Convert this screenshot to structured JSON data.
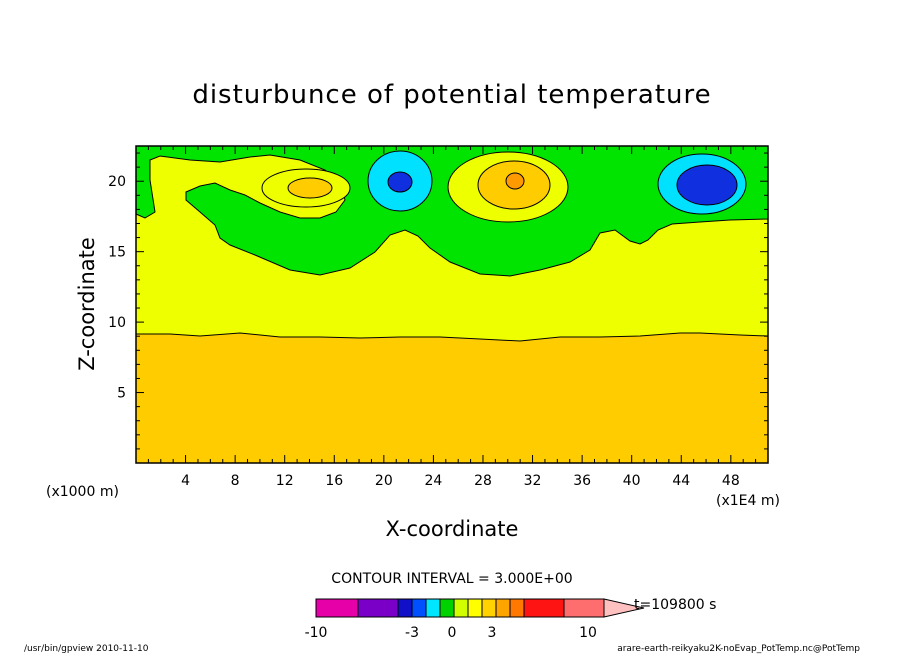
{
  "chart_data": {
    "type": "heatmap",
    "title": "disturbunce of potential temperature",
    "xlabel": "X-coordinate",
    "ylabel": "Z-coordinate",
    "x_unit": "(x1E4 m)",
    "y_unit": "(x1000 m)",
    "xlim": [
      0,
      51
    ],
    "ylim": [
      0,
      22.5
    ],
    "x_ticks": [
      4,
      8,
      12,
      16,
      20,
      24,
      28,
      32,
      36,
      40,
      44,
      48
    ],
    "y_ticks": [
      5,
      10,
      15,
      20
    ],
    "contour_interval": "CONTOUR INTERVAL = 3.000E+00",
    "time_label": "t=109800 s",
    "colorbar": {
      "tick_labels": [
        "-10",
        "-3",
        "0",
        "3",
        "10"
      ],
      "colors": [
        "#e600a8",
        "#7a00c8",
        "#1010c8",
        "#0050ff",
        "#00e6ff",
        "#00d200",
        "#d2ff00",
        "#ffff00",
        "#ffd200",
        "#ffa500",
        "#ff7800",
        "#ff1414",
        "#ff6e6e",
        "#ffc0c0"
      ]
    },
    "layers": [
      {
        "name": "level-0-to-3",
        "color": "#ffcc00",
        "z_top": 9.4
      },
      {
        "name": "level-3-to-6",
        "color": "#eeff00",
        "z_top": 17.5
      },
      {
        "name": "level-6-to-9",
        "color": "#00e400",
        "z_top": 22.5
      }
    ],
    "features": [
      {
        "name": "warm-cell-1",
        "x": 14.5,
        "z": 20.1,
        "value": "warm"
      },
      {
        "name": "cold-cell-1",
        "x": 21.5,
        "z": 20.4,
        "value": "cold"
      },
      {
        "name": "warm-cell-2",
        "x": 30.5,
        "z": 20.4,
        "value": "warm"
      },
      {
        "name": "cold-cell-2",
        "x": 46.5,
        "z": 20.0,
        "value": "cold"
      }
    ],
    "grid": false
  },
  "footer": {
    "left": "/usr/bin/gpview   2010-11-10",
    "right": "arare-earth-reikyaku2K-noEvap_PotTemp.nc@PotTemp"
  }
}
